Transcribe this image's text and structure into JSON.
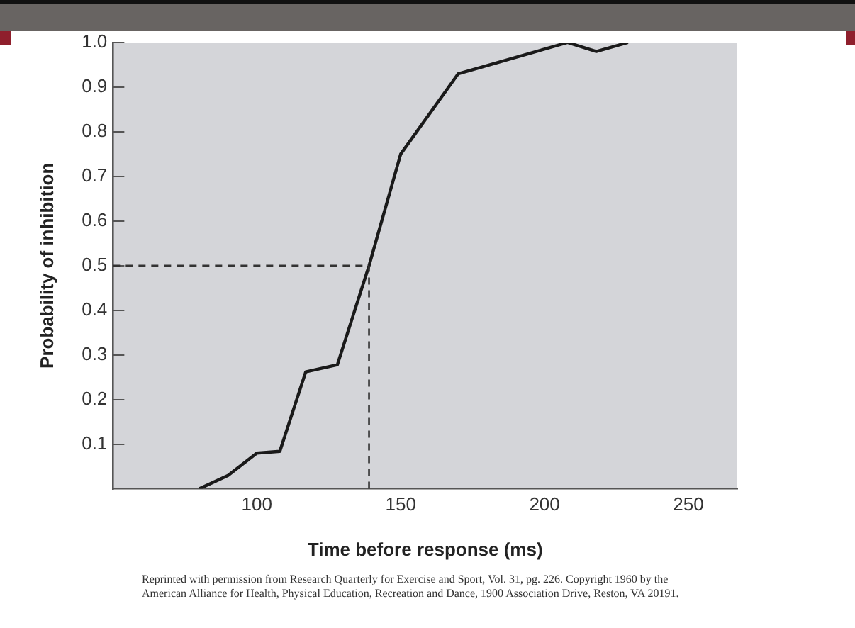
{
  "chart_data": {
    "type": "line",
    "xlabel": "Time before response (ms)",
    "ylabel": "Probability of inhibition",
    "x": [
      80,
      90,
      100,
      108,
      117,
      128,
      139,
      150,
      170,
      208,
      218,
      229
    ],
    "series": [
      {
        "color": "#1a1a1a",
        "values": [
          0,
          0.03,
          0.08,
          0.084,
          0.262,
          0.278,
          0.5,
          0.75,
          0.93,
          1.0,
          0.98,
          1.0
        ]
      }
    ],
    "xlim": [
      50,
      267
    ],
    "xticks": [
      100,
      150,
      200,
      250
    ],
    "ylim": [
      0,
      1
    ],
    "yticks": [
      0.1,
      0.2,
      0.3,
      0.4,
      0.5,
      0.6,
      0.7,
      0.8,
      0.9,
      {
        "value": 1,
        "label": "1.0"
      }
    ],
    "grid": false,
    "marker": "none",
    "line_style": "solid",
    "ref_lines": [
      {
        "axis": "y",
        "value": 0.5,
        "line_style": "dashed",
        "color": "#333333"
      },
      {
        "axis": "x",
        "value": 139,
        "line_style": "dashed",
        "color": "#333333"
      }
    ],
    "annotations": [
      "Reprinted with permission from Research Quarterly for Exercise and Sport, Vol. 31, pg. 226. Copyright 1960 by the American Alliance for Health, Physical Education, Recreation and Dance, 1900 Association Drive, Reston, VA 20191."
    ]
  }
}
